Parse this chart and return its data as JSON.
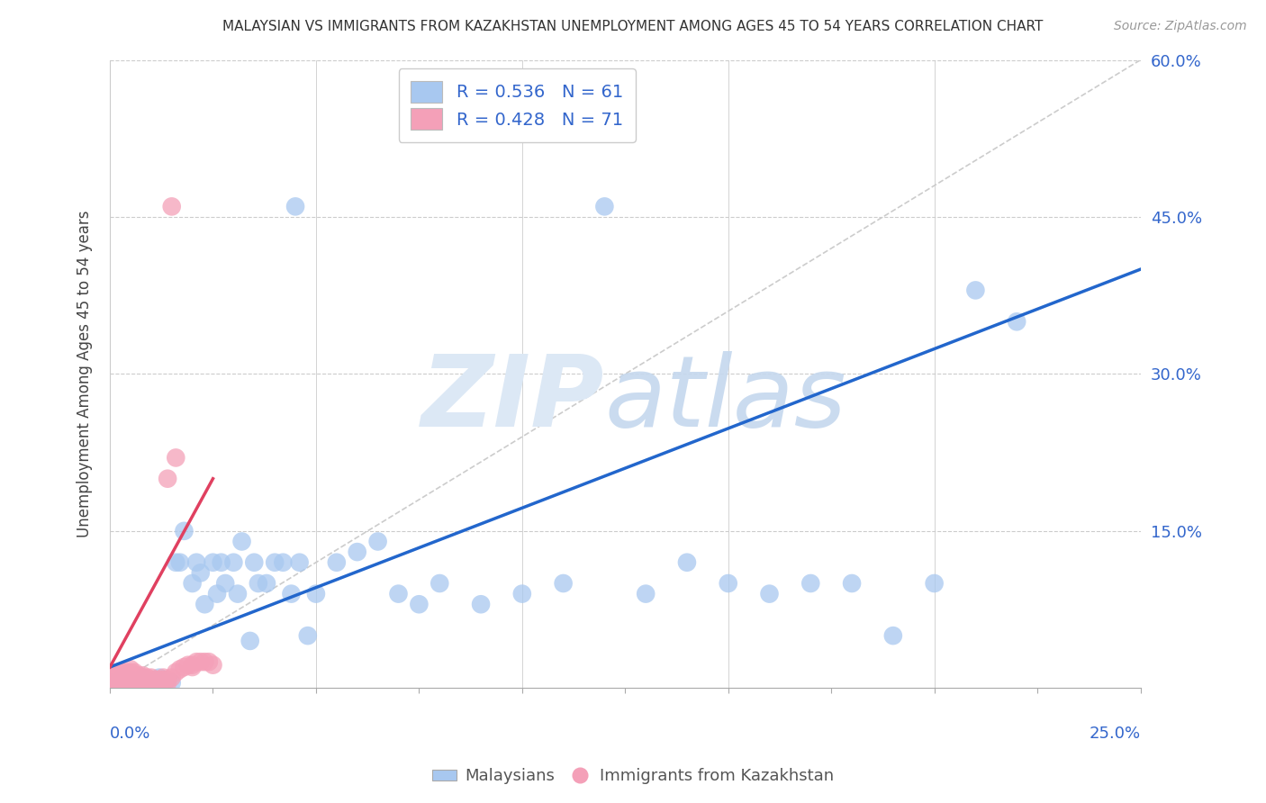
{
  "title": "MALAYSIAN VS IMMIGRANTS FROM KAZAKHSTAN UNEMPLOYMENT AMONG AGES 45 TO 54 YEARS CORRELATION CHART",
  "source": "Source: ZipAtlas.com",
  "ylabel": "Unemployment Among Ages 45 to 54 years",
  "xlim": [
    0.0,
    0.25
  ],
  "ylim": [
    0.0,
    0.6
  ],
  "blue_R": 0.536,
  "blue_N": 61,
  "pink_R": 0.428,
  "pink_N": 71,
  "blue_color": "#a8c8f0",
  "pink_color": "#f4a0b8",
  "blue_line_color": "#2266cc",
  "pink_line_color": "#e04060",
  "legend_text_color": "#3366cc",
  "blue_scatter_x": [
    0.001,
    0.002,
    0.003,
    0.003,
    0.004,
    0.005,
    0.005,
    0.006,
    0.007,
    0.008,
    0.009,
    0.01,
    0.011,
    0.012,
    0.013,
    0.015,
    0.016,
    0.017,
    0.018,
    0.02,
    0.021,
    0.022,
    0.023,
    0.025,
    0.026,
    0.027,
    0.028,
    0.03,
    0.031,
    0.032,
    0.034,
    0.035,
    0.036,
    0.038,
    0.04,
    0.042,
    0.044,
    0.046,
    0.048,
    0.05,
    0.055,
    0.06,
    0.065,
    0.07,
    0.075,
    0.08,
    0.09,
    0.1,
    0.11,
    0.12,
    0.13,
    0.14,
    0.15,
    0.16,
    0.17,
    0.18,
    0.19,
    0.2,
    0.21,
    0.22,
    0.045
  ],
  "blue_scatter_y": [
    0.005,
    0.005,
    0.005,
    0.01,
    0.005,
    0.005,
    0.008,
    0.005,
    0.005,
    0.01,
    0.005,
    0.005,
    0.005,
    0.01,
    0.005,
    0.005,
    0.12,
    0.12,
    0.15,
    0.1,
    0.12,
    0.11,
    0.08,
    0.12,
    0.09,
    0.12,
    0.1,
    0.12,
    0.09,
    0.14,
    0.045,
    0.12,
    0.1,
    0.1,
    0.12,
    0.12,
    0.09,
    0.12,
    0.05,
    0.09,
    0.12,
    0.13,
    0.14,
    0.09,
    0.08,
    0.1,
    0.08,
    0.09,
    0.1,
    0.46,
    0.09,
    0.12,
    0.1,
    0.09,
    0.1,
    0.1,
    0.05,
    0.1,
    0.38,
    0.35,
    0.46
  ],
  "pink_scatter_x": [
    0.0,
    0.0,
    0.0,
    0.001,
    0.001,
    0.001,
    0.001,
    0.002,
    0.002,
    0.002,
    0.002,
    0.002,
    0.003,
    0.003,
    0.003,
    0.003,
    0.003,
    0.004,
    0.004,
    0.004,
    0.004,
    0.004,
    0.005,
    0.005,
    0.005,
    0.005,
    0.005,
    0.005,
    0.006,
    0.006,
    0.006,
    0.006,
    0.006,
    0.007,
    0.007,
    0.007,
    0.007,
    0.008,
    0.008,
    0.008,
    0.008,
    0.009,
    0.009,
    0.009,
    0.01,
    0.01,
    0.01,
    0.011,
    0.011,
    0.012,
    0.012,
    0.013,
    0.013,
    0.013,
    0.014,
    0.014,
    0.015,
    0.016,
    0.017,
    0.018,
    0.019,
    0.02,
    0.02,
    0.021,
    0.022,
    0.023,
    0.024,
    0.025,
    0.015,
    0.016,
    0.014
  ],
  "pink_scatter_y": [
    0.005,
    0.008,
    0.01,
    0.005,
    0.008,
    0.01,
    0.012,
    0.005,
    0.008,
    0.01,
    0.012,
    0.015,
    0.005,
    0.008,
    0.01,
    0.012,
    0.015,
    0.005,
    0.008,
    0.01,
    0.012,
    0.015,
    0.005,
    0.008,
    0.01,
    0.012,
    0.015,
    0.018,
    0.005,
    0.008,
    0.01,
    0.012,
    0.015,
    0.005,
    0.008,
    0.01,
    0.012,
    0.005,
    0.008,
    0.01,
    0.012,
    0.005,
    0.008,
    0.01,
    0.005,
    0.008,
    0.01,
    0.005,
    0.008,
    0.005,
    0.008,
    0.005,
    0.008,
    0.01,
    0.005,
    0.008,
    0.01,
    0.015,
    0.018,
    0.02,
    0.022,
    0.02,
    0.022,
    0.025,
    0.025,
    0.025,
    0.025,
    0.022,
    0.46,
    0.22,
    0.2
  ],
  "blue_line_x0": 0.0,
  "blue_line_y0": 0.02,
  "blue_line_x1": 0.25,
  "blue_line_y1": 0.4,
  "pink_line_x0": 0.0,
  "pink_line_y0": 0.02,
  "pink_line_x1": 0.025,
  "pink_line_y1": 0.2,
  "diag_line_x0": 0.0,
  "diag_line_y0": 0.0,
  "diag_line_x1": 0.25,
  "diag_line_y1": 0.6
}
